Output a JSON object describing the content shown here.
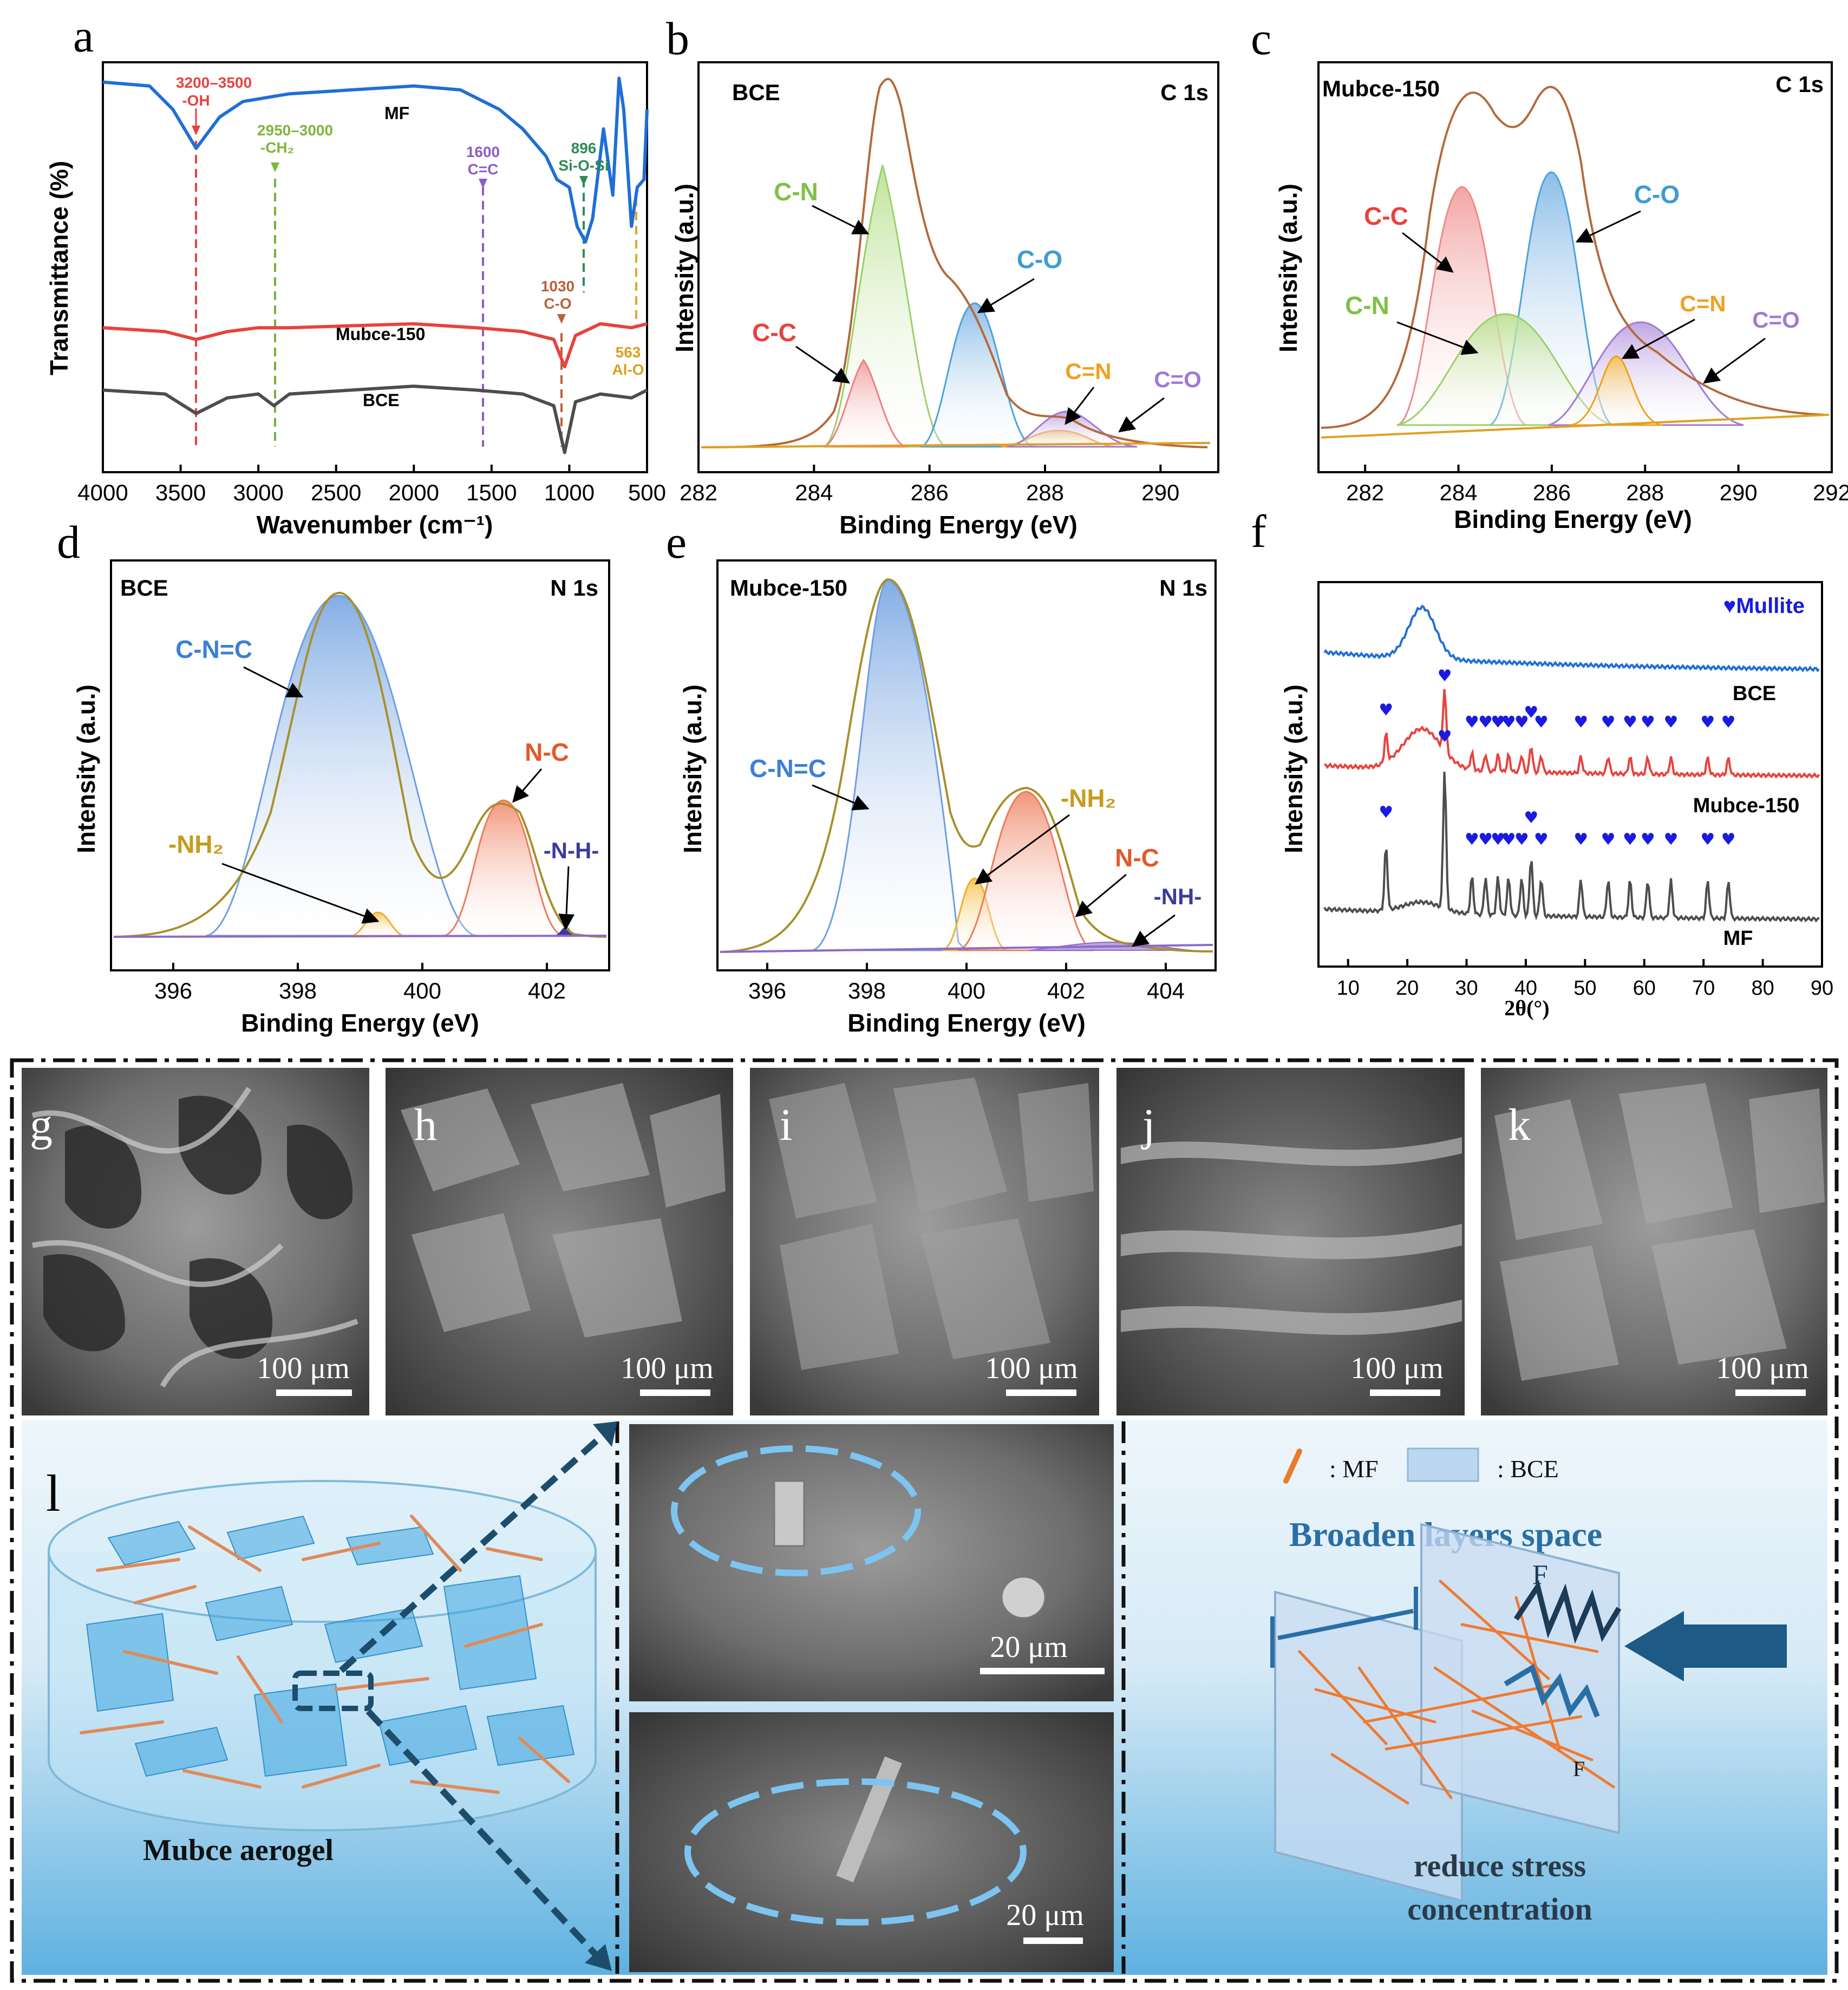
{
  "panel_letters": [
    "a",
    "b",
    "c",
    "d",
    "e",
    "f",
    "g",
    "h",
    "i",
    "j",
    "k",
    "l"
  ],
  "panel_a": {
    "xlabel": "Wavenumber (cm⁻¹)",
    "ylabel": "Transmittance (%)",
    "series": [
      "MF",
      "Mubce-150",
      "BCE"
    ],
    "ann_oh": [
      "3200–3500",
      "-OH"
    ],
    "ann_ch2": [
      "2950–3000",
      "-CH₂"
    ],
    "ann_cc": [
      "1600",
      "C=C"
    ],
    "ann_sios": [
      "896",
      "Si-O-Si"
    ],
    "ann_co": [
      "1030",
      "C-O"
    ],
    "ann_alo": [
      "563",
      "Al-O"
    ]
  },
  "panel_b": {
    "title": "BCE",
    "core": "C 1s",
    "xlabel": "Binding Energy (eV)",
    "ylabel": "Intensity (a.u.)",
    "peaks": [
      "C-N",
      "C-C",
      "C-O",
      "C=N",
      "C=O"
    ]
  },
  "panel_c": {
    "title": "Mubce-150",
    "core": "C 1s",
    "xlabel": "Binding Energy (eV)",
    "ylabel": "Intensity (a.u.)",
    "peaks": [
      "C-C",
      "C-O",
      "C-N",
      "C=N",
      "C=O"
    ]
  },
  "panel_d": {
    "title": "BCE",
    "core": "N 1s",
    "xlabel": "Binding Energy (eV)",
    "ylabel": "Intensity (a.u.)",
    "peaks": [
      "C-N=C",
      "N-C",
      "-NH₂",
      "-N-H-"
    ]
  },
  "panel_e": {
    "title": "Mubce-150",
    "core": "N 1s",
    "xlabel": "Binding Energy (eV)",
    "ylabel": "Intensity (a.u.)",
    "peaks": [
      "C-N=C",
      "-NH₂",
      "N-C",
      "-NH-"
    ]
  },
  "panel_f": {
    "legend": "♥Mullite",
    "xlabel": "2θ(°)",
    "ylabel": "Intensity (a.u.)",
    "series": [
      "BCE",
      "Mubce-150",
      "MF"
    ]
  },
  "sem": {
    "scale_100": "100 μm",
    "scale_20": "20 μm"
  },
  "schematic": {
    "aerogel_label": "Mubce aerogel",
    "legend_mf": ": MF",
    "legend_bce": ": BCE",
    "title": "Broaden layers space",
    "force": "F",
    "caption1": "reduce stress",
    "caption2": "concentration"
  },
  "chart_data": [
    {
      "panel": "a",
      "type": "line",
      "xlabel": "Wavenumber (cm⁻¹)",
      "ylabel": "Transmittance (%)",
      "xlim": [
        4000,
        500
      ],
      "xticks": [
        4000,
        3500,
        3000,
        2500,
        2000,
        1500,
        1000,
        500
      ],
      "series": [
        {
          "name": "MF",
          "color": "#1f6fd6",
          "x": [
            4000,
            3700,
            3550,
            3400,
            3250,
            3100,
            2800,
            2000,
            1700,
            1600,
            1450,
            1300,
            1150,
            1080,
            1000,
            950,
            896,
            850,
            780,
            720,
            680,
            650,
            600,
            563,
            520,
            500
          ],
          "y": [
            97,
            96,
            90,
            80,
            88,
            92,
            94,
            96,
            95,
            93,
            90,
            85,
            78,
            72,
            70,
            60,
            56,
            62,
            85,
            68,
            98,
            90,
            60,
            70,
            72,
            90
          ]
        },
        {
          "name": "Mubce-150",
          "color": "#e8423e",
          "x": [
            4000,
            3600,
            3400,
            3200,
            3000,
            2800,
            2000,
            1600,
            1300,
            1100,
            1030,
            960,
            800,
            600,
            500
          ],
          "y": [
            34,
            33,
            31,
            33,
            34,
            34,
            35,
            34,
            33,
            31,
            24,
            32,
            35,
            34,
            35
          ]
        },
        {
          "name": "BCE",
          "color": "#4d4d4d",
          "x": [
            4000,
            3600,
            3400,
            3200,
            3000,
            2900,
            2800,
            2000,
            1600,
            1300,
            1100,
            1030,
            960,
            800,
            600,
            500
          ],
          "y": [
            18,
            17,
            12,
            16,
            17,
            14,
            17,
            19,
            18,
            17,
            14,
            2,
            15,
            17,
            16,
            18
          ]
        }
      ]
    },
    {
      "panel": "b",
      "type": "line",
      "xlim": [
        282,
        291
      ],
      "xticks": [
        282,
        284,
        286,
        288,
        290
      ],
      "peaks": [
        {
          "name": "C-N",
          "center": 284.9
        },
        {
          "name": "C-C",
          "center": 284.6
        },
        {
          "name": "C-O",
          "center": 286.4
        },
        {
          "name": "C=N",
          "center": 288.0
        },
        {
          "name": "C=O",
          "center": 288.2
        }
      ]
    },
    {
      "panel": "c",
      "type": "line",
      "xlim": [
        281,
        292
      ],
      "xticks": [
        282,
        284,
        286,
        288,
        290,
        292
      ],
      "peaks": [
        {
          "name": "C-C",
          "center": 284.6
        },
        {
          "name": "C-O",
          "center": 286.2
        },
        {
          "name": "C-N",
          "center": 285.3
        },
        {
          "name": "C=N",
          "center": 287.6
        },
        {
          "name": "C=O",
          "center": 288.2
        }
      ]
    },
    {
      "panel": "d",
      "type": "line",
      "xlim": [
        395,
        403
      ],
      "xticks": [
        396,
        398,
        400,
        402
      ],
      "peaks": [
        {
          "name": "C-N=C",
          "center": 398.7
        },
        {
          "name": "N-C",
          "center": 401.3
        },
        {
          "name": "-NH₂",
          "center": 399.3
        },
        {
          "name": "-N-H-",
          "center": 402.3
        }
      ]
    },
    {
      "panel": "e",
      "type": "line",
      "xlim": [
        395,
        405
      ],
      "xticks": [
        396,
        398,
        400,
        402,
        404
      ],
      "peaks": [
        {
          "name": "C-N=C",
          "center": 398.5
        },
        {
          "name": "-NH₂",
          "center": 400.0
        },
        {
          "name": "N-C",
          "center": 401.2
        },
        {
          "name": "-NH-",
          "center": 402.5
        }
      ]
    },
    {
      "panel": "f",
      "type": "line",
      "xlim": [
        5,
        90
      ],
      "xticks": [
        10,
        20,
        30,
        40,
        50,
        60,
        70,
        80,
        90
      ],
      "series": [
        {
          "name": "BCE",
          "color": "#1f6fd6"
        },
        {
          "name": "Mubce-150",
          "color": "#e8423e"
        },
        {
          "name": "MF",
          "color": "#4d4d4d"
        }
      ],
      "mullite_peaks": [
        16.4,
        26.3,
        30.9,
        33.2,
        35.3,
        37.1,
        39.3,
        40.9,
        42.6,
        49.3,
        53.9,
        57.6,
        60.6,
        64.5,
        70.7,
        74.2
      ]
    }
  ]
}
